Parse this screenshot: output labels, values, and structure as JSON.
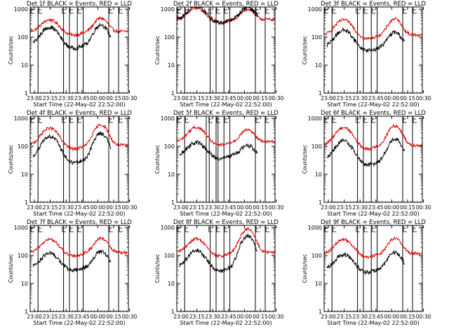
{
  "figure": {
    "colors": {
      "events": "#000000",
      "lld": "#dd0000",
      "frame": "#000000",
      "background": "#ffffff"
    },
    "xaxis_label": "Start Time (22-May-02 22:52:00)",
    "yaxis_label": "Counts/sec",
    "x_ticks": [
      "23:00",
      "23:15",
      "23:30",
      "23:45",
      "00:00",
      "00:15",
      "00:30"
    ],
    "y_ticks": [
      "1",
      "10",
      "100",
      "1000"
    ]
  },
  "chart_data": [
    {
      "type": "line",
      "title": "Det 1f BLACK = Events, RED = LLD",
      "x_range": [
        0,
        100
      ],
      "ylim": [
        1,
        1200
      ],
      "log_y": true,
      "x_ticks": [
        "23:00",
        "23:15",
        "23:30",
        "23:45",
        "00:00",
        "00:15",
        "00:30"
      ],
      "y_ticks": [
        "1",
        "10",
        "100",
        "1000"
      ],
      "xlabel": "Start Time (22-May-02 22:52:00)",
      "ylabel": "Counts/sec",
      "events_base": 55,
      "events_peaks": [
        230,
        280
      ],
      "events_range": [
        3,
        82
      ],
      "lld_base": 160,
      "lld_peaks": [
        420,
        480
      ],
      "lld_range": [
        0,
        100
      ],
      "vlines": [
        8,
        34,
        40,
        48,
        54,
        80,
        90
      ],
      "flags": [
        0,
        8,
        32,
        40,
        48,
        80,
        90
      ]
    },
    {
      "type": "line",
      "title": "Det 2f BLACK = Events, RED = LLD",
      "x_range": [
        0,
        100
      ],
      "ylim": [
        1,
        1200
      ],
      "log_y": true,
      "x_ticks": [
        "23:00",
        "23:15",
        "23:30",
        "23:45",
        "00:00",
        "00:15",
        "00:30"
      ],
      "y_ticks": [
        "1",
        "10",
        "100",
        "1000"
      ],
      "xlabel": "Start Time (22-May-02 22:52:00)",
      "ylabel": "Counts/sec",
      "events_base": 450,
      "events_peaks": [
        1300,
        1200
      ],
      "events_range": [
        0,
        82
      ],
      "lld_base": 430,
      "lld_peaks": [
        1100,
        1000
      ],
      "lld_range": [
        0,
        100
      ],
      "vlines": [
        8,
        34,
        40,
        48,
        54,
        80,
        90
      ],
      "flags": [
        0,
        8,
        32,
        40,
        48,
        80,
        90
      ]
    },
    {
      "type": "line",
      "title": "Det 3f BLACK = Events, RED = LLD",
      "x_range": [
        0,
        100
      ],
      "ylim": [
        1,
        1200
      ],
      "log_y": true,
      "x_ticks": [
        "23:00",
        "23:15",
        "23:30",
        "23:45",
        "00:00",
        "00:15",
        "00:30"
      ],
      "y_ticks": [
        "1",
        "10",
        "100",
        "1000"
      ],
      "xlabel": "Start Time (22-May-02 22:52:00)",
      "ylabel": "Counts/sec",
      "events_base": 45,
      "events_peaks": [
        180,
        150
      ],
      "events_range": [
        3,
        82
      ],
      "lld_base": 120,
      "lld_peaks": [
        420,
        450
      ],
      "lld_range": [
        0,
        100
      ],
      "vlines": [
        8,
        34,
        40,
        48,
        54,
        80,
        90
      ],
      "flags": [
        0,
        8,
        32,
        40,
        48,
        80,
        90
      ]
    },
    {
      "type": "line",
      "title": "Det 4f BLACK = Events, RED = LLD",
      "x_range": [
        0,
        100
      ],
      "ylim": [
        1,
        1200
      ],
      "log_y": true,
      "x_ticks": [
        "23:00",
        "23:15",
        "23:30",
        "23:45",
        "00:00",
        "00:15",
        "00:30"
      ],
      "y_ticks": [
        "1",
        "10",
        "100",
        "1000"
      ],
      "xlabel": "Start Time (22-May-02 22:52:00)",
      "ylabel": "Counts/sec",
      "events_base": 35,
      "events_peaks": [
        230,
        300
      ],
      "events_range": [
        3,
        82
      ],
      "lld_base": 110,
      "lld_peaks": [
        450,
        600
      ],
      "lld_range": [
        0,
        100
      ],
      "vlines": [
        8,
        34,
        40,
        48,
        54,
        80,
        90
      ],
      "flags": [
        0,
        8,
        32,
        40,
        48,
        80,
        90
      ]
    },
    {
      "type": "line",
      "title": "Det 5f BLACK = Events, RED = LLD",
      "x_range": [
        0,
        100
      ],
      "ylim": [
        1,
        1200
      ],
      "log_y": true,
      "x_ticks": [
        "23:00",
        "23:15",
        "23:30",
        "23:45",
        "00:00",
        "00:15",
        "00:30"
      ],
      "y_ticks": [
        "1",
        "10",
        "100",
        "1000"
      ],
      "xlabel": "Start Time (22-May-02 22:52:00)",
      "ylabel": "Counts/sec",
      "events_base": 50,
      "events_peaks": [
        140,
        110
      ],
      "events_range": [
        3,
        82
      ],
      "lld_base": 150,
      "lld_peaks": [
        480,
        400
      ],
      "lld_range": [
        0,
        100
      ],
      "vlines": [
        8,
        30,
        33,
        40,
        42,
        48,
        54,
        80,
        90
      ],
      "flags": [
        0,
        8,
        32,
        40,
        48,
        80,
        90
      ]
    },
    {
      "type": "line",
      "title": "Det 6f BLACK = Events, RED = LLD",
      "x_range": [
        0,
        100
      ],
      "ylim": [
        1,
        1200
      ],
      "log_y": true,
      "x_ticks": [
        "23:00",
        "23:15",
        "23:30",
        "23:45",
        "00:00",
        "00:15",
        "00:30"
      ],
      "y_ticks": [
        "1",
        "10",
        "100",
        "1000"
      ],
      "xlabel": "Start Time (22-May-02 22:52:00)",
      "ylabel": "Counts/sec",
      "events_base": 30,
      "events_peaks": [
        160,
        180
      ],
      "events_range": [
        3,
        82
      ],
      "lld_base": 110,
      "lld_peaks": [
        480,
        550
      ],
      "lld_range": [
        0,
        100
      ],
      "vlines": [
        8,
        34,
        40,
        48,
        54,
        80,
        90
      ],
      "flags": [
        0,
        8,
        32,
        40,
        48,
        80,
        90
      ]
    },
    {
      "type": "line",
      "title": "Det 7f BLACK = Events, RED = LLD",
      "x_range": [
        0,
        100
      ],
      "ylim": [
        1,
        1200
      ],
      "log_y": true,
      "x_ticks": [
        "23:00",
        "23:15",
        "23:30",
        "23:45",
        "00:00",
        "00:15",
        "00:30"
      ],
      "y_ticks": [
        "1",
        "10",
        "100",
        "1000"
      ],
      "xlabel": "Start Time (22-May-02 22:52:00)",
      "ylabel": "Counts/sec",
      "events_base": 40,
      "events_peaks": [
        120,
        140
      ],
      "events_range": [
        3,
        82
      ],
      "lld_base": 130,
      "lld_peaks": [
        380,
        420
      ],
      "lld_range": [
        0,
        100
      ],
      "vlines": [
        8,
        34,
        40,
        48,
        54,
        80,
        90
      ],
      "flags": [
        0,
        8,
        32,
        40,
        48,
        80,
        90
      ]
    },
    {
      "type": "line",
      "title": "Det 8f BLACK = Events, RED = LLD",
      "x_range": [
        0,
        100
      ],
      "ylim": [
        1,
        1200
      ],
      "log_y": true,
      "x_ticks": [
        "23:00",
        "23:15",
        "23:30",
        "23:45",
        "00:00",
        "00:15",
        "00:30"
      ],
      "y_ticks": [
        "1",
        "10",
        "100",
        "1000"
      ],
      "xlabel": "Start Time (22-May-02 22:52:00)",
      "ylabel": "Counts/sec",
      "events_base": 40,
      "events_peaks": [
        150,
        500
      ],
      "events_range": [
        3,
        82
      ],
      "lld_base": 130,
      "lld_peaks": [
        400,
        900
      ],
      "lld_range": [
        0,
        100
      ],
      "vlines": [
        8,
        34,
        40,
        48,
        54,
        80,
        90
      ],
      "flags": [
        0,
        8,
        32,
        40,
        48,
        80,
        90
      ]
    },
    {
      "type": "line",
      "title": "Det 9f BLACK = Events, RED = LLD",
      "x_range": [
        0,
        100
      ],
      "ylim": [
        1,
        1200
      ],
      "log_y": true,
      "x_ticks": [
        "23:00",
        "23:15",
        "23:30",
        "23:45",
        "00:00",
        "00:15",
        "00:30"
      ],
      "y_ticks": [
        "1",
        "10",
        "100",
        "1000"
      ],
      "xlabel": "Start Time (22-May-02 22:52:00)",
      "ylabel": "Counts/sec",
      "events_base": 35,
      "events_peaks": [
        110,
        130
      ],
      "events_range": [
        3,
        82
      ],
      "lld_base": 120,
      "lld_peaks": [
        380,
        420
      ],
      "lld_range": [
        0,
        100
      ],
      "vlines": [
        8,
        34,
        40,
        48,
        54,
        80,
        90
      ],
      "flags": [
        0,
        8,
        32,
        40,
        48,
        80,
        90
      ]
    }
  ]
}
